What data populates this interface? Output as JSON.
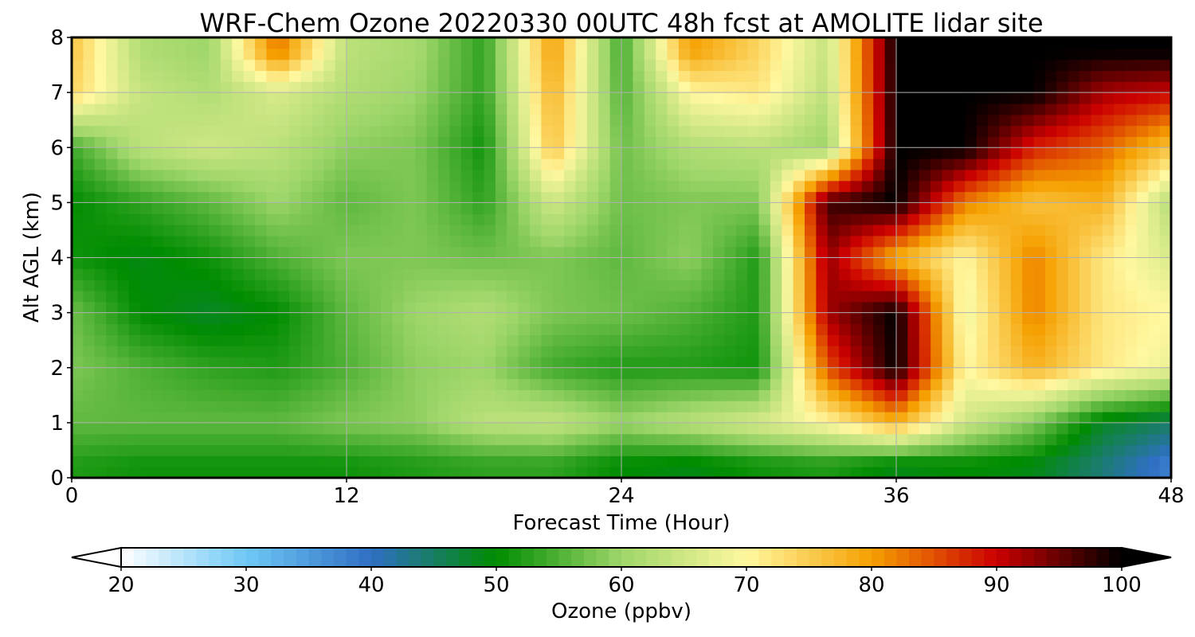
{
  "chart_data": {
    "type": "heatmap",
    "title": "WRF-Chem Ozone  20220330 00UTC 48h fcst at AMOLITE lidar site",
    "xlabel": "Forecast Time (Hour)",
    "ylabel": "Alt AGL (km)",
    "xlim": [
      0,
      48
    ],
    "ylim": [
      0,
      8
    ],
    "x_ticks": [
      "0",
      "12",
      "24",
      "36",
      "48"
    ],
    "y_ticks": [
      "0",
      "1",
      "2",
      "3",
      "4",
      "5",
      "6",
      "7",
      "8"
    ],
    "grid": true,
    "x": [
      0,
      3,
      6,
      9,
      12,
      15,
      18,
      21,
      24,
      27,
      30,
      33,
      36,
      39,
      42,
      45,
      48
    ],
    "y": [
      0.25,
      1,
      2,
      3,
      4,
      5,
      6,
      7,
      7.75
    ],
    "z": [
      [
        52,
        51,
        51,
        51,
        51,
        52,
        53,
        53,
        50,
        49,
        51,
        52,
        49,
        50,
        49,
        44,
        38
      ],
      [
        56,
        56,
        56,
        56,
        58,
        59,
        63,
        64,
        60,
        63,
        66,
        70,
        78,
        65,
        58,
        48,
        45
      ],
      [
        58,
        55,
        53,
        52,
        55,
        59,
        60,
        54,
        52,
        52,
        51,
        85,
        100,
        70,
        78,
        72,
        68
      ],
      [
        57,
        50,
        48,
        50,
        56,
        60,
        62,
        58,
        57,
        55,
        52,
        92,
        100,
        68,
        82,
        72,
        70
      ],
      [
        51,
        49,
        51,
        55,
        58,
        58,
        57,
        58,
        56,
        59,
        52,
        93,
        78,
        70,
        82,
        72,
        66
      ],
      [
        50,
        53,
        56,
        60,
        56,
        58,
        53,
        65,
        57,
        58,
        58,
        97,
        100,
        82,
        76,
        78,
        62
      ],
      [
        54,
        63,
        65,
        63,
        59,
        58,
        51,
        76,
        57,
        62,
        63,
        60,
        100,
        100,
        88,
        84,
        76
      ],
      [
        74,
        64,
        62,
        66,
        62,
        60,
        53,
        78,
        55,
        70,
        72,
        63,
        100,
        100,
        100,
        92,
        90
      ],
      [
        76,
        62,
        60,
        83,
        63,
        61,
        53,
        80,
        54,
        80,
        74,
        64,
        100,
        100,
        100,
        100,
        100
      ]
    ],
    "colorbar": {
      "label": "Ozone  (ppbv)",
      "min": 20,
      "max": 100,
      "ticks": [
        "20",
        "30",
        "40",
        "50",
        "60",
        "70",
        "80",
        "90",
        "100"
      ],
      "extend": "both",
      "colors": [
        "#ffffff",
        "#6ec8f5",
        "#2f6fc4",
        "#008c00",
        "#9ed66a",
        "#fff8a0",
        "#f5a000",
        "#cc0000",
        "#000000"
      ]
    }
  }
}
